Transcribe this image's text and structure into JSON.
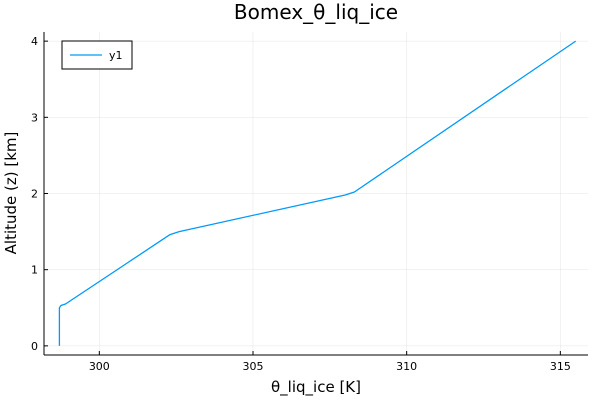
{
  "chart_data": {
    "type": "line",
    "title": "Bomex_θ_liq_ice",
    "xlabel": "θ_liq_ice [K]",
    "ylabel": "Altitude (z) [km]",
    "xlim": [
      298.2,
      315.9
    ],
    "ylim": [
      -0.12,
      4.12
    ],
    "xticks": [
      300,
      305,
      310,
      315
    ],
    "yticks": [
      0,
      1,
      2,
      3,
      4
    ],
    "grid": true,
    "legend_position": "top-left",
    "series": [
      {
        "name": "y1",
        "color": "#009af9",
        "x": [
          298.7,
          298.7,
          298.75,
          298.9,
          302.3,
          302.6,
          308.0,
          308.3,
          315.5
        ],
        "y": [
          0.0,
          0.5,
          0.53,
          0.55,
          1.46,
          1.5,
          1.98,
          2.02,
          4.0
        ]
      }
    ]
  }
}
